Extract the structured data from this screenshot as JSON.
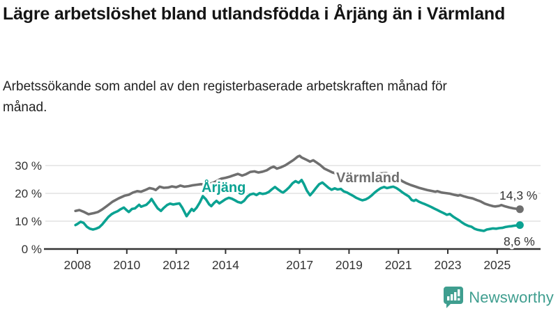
{
  "page": {
    "title": "Lägre arbetslöshet bland utlandsfödda i Årjäng än i Värmland",
    "subtitle": "Arbetssökande som andel av den registerbaserade arbetskraften månad för månad."
  },
  "chart_data": {
    "type": "line",
    "title": "Lägre arbetslöshet bland utlandsfödda i Årjäng än i Värmland",
    "subtitle": "Arbetssökande som andel av den registerbaserade arbetskraften månad för månad.",
    "unit": "%",
    "grid": "horizontal",
    "legend": "inline-series-labels",
    "x_axis": {
      "tick_years": [
        2008,
        2010,
        2012,
        2014,
        2017,
        2019,
        2021,
        2023,
        2025
      ],
      "tick_labels": [
        "2008",
        "2010",
        "2012",
        "2014",
        "2017",
        "2019",
        "2021",
        "2023",
        "2025"
      ],
      "range": [
        2007.8,
        2026.5
      ]
    },
    "y_axis": {
      "ticks": [
        0,
        10,
        20,
        30
      ],
      "tick_labels": [
        "0 %",
        "10 %",
        "20 %",
        "30 %"
      ],
      "range": [
        0,
        35
      ]
    },
    "series": [
      {
        "id": "varmland",
        "name": "Värmland",
        "color": "#6f6f6f",
        "end_value": 14.3,
        "end_label": "14,3 %",
        "points": [
          [
            2007.92,
            13.7
          ],
          [
            2008.08,
            14.0
          ],
          [
            2008.25,
            13.4
          ],
          [
            2008.45,
            12.5
          ],
          [
            2008.67,
            12.9
          ],
          [
            2008.83,
            13.3
          ],
          [
            2009.0,
            14.2
          ],
          [
            2009.17,
            15.3
          ],
          [
            2009.42,
            17.0
          ],
          [
            2009.67,
            18.2
          ],
          [
            2009.92,
            19.2
          ],
          [
            2010.08,
            19.5
          ],
          [
            2010.25,
            20.3
          ],
          [
            2010.42,
            20.8
          ],
          [
            2010.58,
            20.6
          ],
          [
            2010.75,
            21.2
          ],
          [
            2010.92,
            21.9
          ],
          [
            2011.08,
            21.6
          ],
          [
            2011.17,
            21.2
          ],
          [
            2011.33,
            22.4
          ],
          [
            2011.5,
            22.0
          ],
          [
            2011.67,
            22.1
          ],
          [
            2011.83,
            22.5
          ],
          [
            2012.0,
            22.2
          ],
          [
            2012.17,
            22.8
          ],
          [
            2012.33,
            22.4
          ],
          [
            2012.5,
            22.6
          ],
          [
            2012.67,
            22.9
          ],
          [
            2012.83,
            23.1
          ],
          [
            2013.0,
            23.3
          ],
          [
            2013.17,
            23.1
          ],
          [
            2013.33,
            23.4
          ],
          [
            2013.5,
            23.8
          ],
          [
            2013.67,
            24.6
          ],
          [
            2013.83,
            25.3
          ],
          [
            2014.0,
            25.6
          ],
          [
            2014.17,
            26.0
          ],
          [
            2014.33,
            26.5
          ],
          [
            2014.5,
            27.0
          ],
          [
            2014.67,
            26.4
          ],
          [
            2014.83,
            26.9
          ],
          [
            2015.0,
            27.7
          ],
          [
            2015.17,
            27.9
          ],
          [
            2015.33,
            27.5
          ],
          [
            2015.5,
            27.8
          ],
          [
            2015.67,
            28.3
          ],
          [
            2015.83,
            29.2
          ],
          [
            2015.95,
            29.6
          ],
          [
            2016.08,
            28.9
          ],
          [
            2016.25,
            29.4
          ],
          [
            2016.42,
            30.1
          ],
          [
            2016.58,
            31.0
          ],
          [
            2016.75,
            32.0
          ],
          [
            2016.92,
            33.2
          ],
          [
            2017.0,
            33.5
          ],
          [
            2017.08,
            32.9
          ],
          [
            2017.25,
            32.2
          ],
          [
            2017.42,
            31.4
          ],
          [
            2017.55,
            31.9
          ],
          [
            2017.67,
            31.2
          ],
          [
            2017.83,
            30.2
          ],
          [
            2018.0,
            28.9
          ],
          [
            2018.17,
            28.2
          ],
          [
            2018.33,
            27.5
          ],
          [
            2018.5,
            27.1
          ],
          [
            2018.75,
            26.8
          ],
          [
            2019.0,
            26.3
          ],
          [
            2019.25,
            26.0
          ],
          [
            2019.5,
            26.2
          ],
          [
            2019.75,
            26.5
          ],
          [
            2020.0,
            26.8
          ],
          [
            2020.25,
            27.1
          ],
          [
            2020.5,
            27.3
          ],
          [
            2020.75,
            26.5
          ],
          [
            2021.0,
            25.3
          ],
          [
            2021.17,
            24.3
          ],
          [
            2021.33,
            23.6
          ],
          [
            2021.5,
            23.0
          ],
          [
            2021.67,
            22.5
          ],
          [
            2021.83,
            22.0
          ],
          [
            2022.0,
            21.6
          ],
          [
            2022.17,
            21.2
          ],
          [
            2022.33,
            20.9
          ],
          [
            2022.5,
            20.6
          ],
          [
            2022.58,
            20.8
          ],
          [
            2022.75,
            20.3
          ],
          [
            2022.92,
            20.1
          ],
          [
            2023.08,
            19.9
          ],
          [
            2023.25,
            19.5
          ],
          [
            2023.42,
            19.2
          ],
          [
            2023.5,
            19.4
          ],
          [
            2023.67,
            18.9
          ],
          [
            2023.83,
            18.5
          ],
          [
            2024.0,
            18.2
          ],
          [
            2024.17,
            17.6
          ],
          [
            2024.33,
            17.1
          ],
          [
            2024.5,
            16.3
          ],
          [
            2024.67,
            15.8
          ],
          [
            2024.83,
            15.4
          ],
          [
            2024.92,
            15.3
          ],
          [
            2025.08,
            15.5
          ],
          [
            2025.17,
            15.8
          ],
          [
            2025.33,
            15.3
          ],
          [
            2025.5,
            14.9
          ],
          [
            2025.67,
            14.6
          ],
          [
            2025.83,
            14.4
          ],
          [
            2025.92,
            14.3
          ]
        ]
      },
      {
        "id": "arjang",
        "name": "Årjäng",
        "color": "#0ba292",
        "end_value": 8.6,
        "end_label": "8,6 %",
        "points": [
          [
            2007.92,
            8.6
          ],
          [
            2008.0,
            9.0
          ],
          [
            2008.13,
            9.8
          ],
          [
            2008.25,
            9.4
          ],
          [
            2008.38,
            8.0
          ],
          [
            2008.5,
            7.3
          ],
          [
            2008.63,
            7.0
          ],
          [
            2008.75,
            7.3
          ],
          [
            2008.88,
            7.8
          ],
          [
            2009.0,
            8.8
          ],
          [
            2009.13,
            10.2
          ],
          [
            2009.25,
            11.5
          ],
          [
            2009.38,
            12.5
          ],
          [
            2009.5,
            13.1
          ],
          [
            2009.63,
            13.6
          ],
          [
            2009.75,
            14.3
          ],
          [
            2009.88,
            14.9
          ],
          [
            2010.0,
            13.9
          ],
          [
            2010.08,
            13.3
          ],
          [
            2010.21,
            14.4
          ],
          [
            2010.33,
            14.6
          ],
          [
            2010.42,
            15.3
          ],
          [
            2010.5,
            15.9
          ],
          [
            2010.58,
            15.2
          ],
          [
            2010.67,
            15.5
          ],
          [
            2010.79,
            15.9
          ],
          [
            2010.92,
            17.0
          ],
          [
            2011.0,
            18.0
          ],
          [
            2011.13,
            16.2
          ],
          [
            2011.25,
            14.6
          ],
          [
            2011.38,
            13.7
          ],
          [
            2011.5,
            14.8
          ],
          [
            2011.63,
            15.8
          ],
          [
            2011.75,
            16.3
          ],
          [
            2011.88,
            16.0
          ],
          [
            2012.0,
            16.2
          ],
          [
            2012.13,
            16.4
          ],
          [
            2012.25,
            14.8
          ],
          [
            2012.33,
            13.4
          ],
          [
            2012.42,
            11.8
          ],
          [
            2012.54,
            13.3
          ],
          [
            2012.63,
            14.4
          ],
          [
            2012.71,
            13.7
          ],
          [
            2012.83,
            14.9
          ],
          [
            2012.96,
            16.8
          ],
          [
            2013.08,
            19.0
          ],
          [
            2013.21,
            17.8
          ],
          [
            2013.33,
            16.1
          ],
          [
            2013.42,
            15.4
          ],
          [
            2013.54,
            16.6
          ],
          [
            2013.63,
            17.3
          ],
          [
            2013.75,
            16.4
          ],
          [
            2013.88,
            17.2
          ],
          [
            2014.0,
            17.9
          ],
          [
            2014.13,
            18.4
          ],
          [
            2014.25,
            18.1
          ],
          [
            2014.38,
            17.5
          ],
          [
            2014.5,
            16.9
          ],
          [
            2014.63,
            16.6
          ],
          [
            2014.75,
            17.3
          ],
          [
            2014.88,
            18.8
          ],
          [
            2015.0,
            19.6
          ],
          [
            2015.13,
            19.9
          ],
          [
            2015.25,
            19.4
          ],
          [
            2015.38,
            20.1
          ],
          [
            2015.5,
            19.8
          ],
          [
            2015.63,
            20.0
          ],
          [
            2015.75,
            20.5
          ],
          [
            2015.88,
            21.5
          ],
          [
            2016.0,
            22.3
          ],
          [
            2016.13,
            21.4
          ],
          [
            2016.25,
            20.6
          ],
          [
            2016.33,
            20.3
          ],
          [
            2016.46,
            21.2
          ],
          [
            2016.58,
            22.2
          ],
          [
            2016.71,
            23.6
          ],
          [
            2016.83,
            24.4
          ],
          [
            2016.96,
            23.8
          ],
          [
            2017.08,
            24.8
          ],
          [
            2017.17,
            23.4
          ],
          [
            2017.29,
            21.0
          ],
          [
            2017.42,
            19.3
          ],
          [
            2017.54,
            20.5
          ],
          [
            2017.67,
            22.0
          ],
          [
            2017.79,
            23.3
          ],
          [
            2017.92,
            23.9
          ],
          [
            2018.04,
            23.0
          ],
          [
            2018.17,
            22.0
          ],
          [
            2018.29,
            21.3
          ],
          [
            2018.42,
            21.8
          ],
          [
            2018.54,
            21.4
          ],
          [
            2018.67,
            21.6
          ],
          [
            2018.79,
            20.7
          ],
          [
            2018.92,
            20.3
          ],
          [
            2019.04,
            19.7
          ],
          [
            2019.17,
            19.1
          ],
          [
            2019.29,
            18.4
          ],
          [
            2019.42,
            17.9
          ],
          [
            2019.54,
            17.5
          ],
          [
            2019.67,
            17.8
          ],
          [
            2019.79,
            18.4
          ],
          [
            2019.92,
            19.3
          ],
          [
            2020.04,
            20.3
          ],
          [
            2020.17,
            21.2
          ],
          [
            2020.29,
            21.9
          ],
          [
            2020.42,
            22.3
          ],
          [
            2020.54,
            21.9
          ],
          [
            2020.67,
            22.2
          ],
          [
            2020.79,
            22.4
          ],
          [
            2020.92,
            21.9
          ],
          [
            2021.04,
            21.2
          ],
          [
            2021.17,
            20.3
          ],
          [
            2021.29,
            19.6
          ],
          [
            2021.42,
            18.9
          ],
          [
            2021.54,
            17.6
          ],
          [
            2021.63,
            17.3
          ],
          [
            2021.71,
            17.7
          ],
          [
            2021.83,
            17.0
          ],
          [
            2021.96,
            16.5
          ],
          [
            2022.08,
            16.1
          ],
          [
            2022.21,
            15.6
          ],
          [
            2022.33,
            15.1
          ],
          [
            2022.46,
            14.5
          ],
          [
            2022.58,
            14.0
          ],
          [
            2022.71,
            13.4
          ],
          [
            2022.83,
            12.9
          ],
          [
            2022.96,
            12.3
          ],
          [
            2023.08,
            12.6
          ],
          [
            2023.21,
            11.7
          ],
          [
            2023.33,
            11.0
          ],
          [
            2023.46,
            10.3
          ],
          [
            2023.58,
            9.5
          ],
          [
            2023.71,
            8.8
          ],
          [
            2023.83,
            8.3
          ],
          [
            2023.96,
            8.0
          ],
          [
            2024.08,
            7.3
          ],
          [
            2024.21,
            6.9
          ],
          [
            2024.33,
            6.7
          ],
          [
            2024.46,
            6.5
          ],
          [
            2024.58,
            7.0
          ],
          [
            2024.71,
            7.2
          ],
          [
            2024.83,
            7.4
          ],
          [
            2024.96,
            7.3
          ],
          [
            2025.08,
            7.5
          ],
          [
            2025.21,
            7.6
          ],
          [
            2025.33,
            7.9
          ],
          [
            2025.46,
            8.1
          ],
          [
            2025.58,
            8.2
          ],
          [
            2025.71,
            8.4
          ],
          [
            2025.83,
            8.5
          ],
          [
            2025.92,
            8.6
          ]
        ]
      }
    ]
  },
  "footer": {
    "brand": "Newsworthy"
  },
  "colors": {
    "series_gray": "#6f6f6f",
    "series_teal": "#0ba292",
    "brand_teal": "#3f9e8f",
    "grid": "#dcdcdc",
    "axis": "#333333",
    "text": "#141414"
  }
}
